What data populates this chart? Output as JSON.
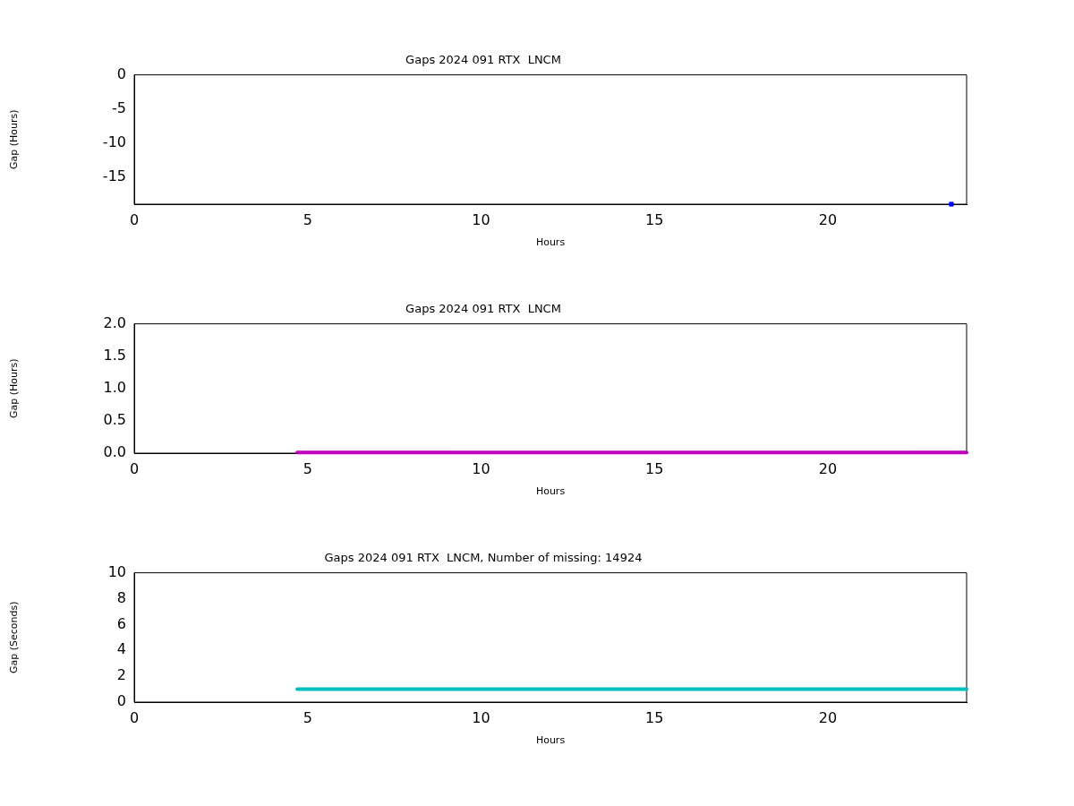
{
  "chart_data": [
    {
      "type": "scatter",
      "title": "Gaps 2024 091 RTX  LNCM",
      "xlabel": "Hours",
      "ylabel": "Gap (Hours)",
      "series": [
        {
          "color": "#0000ff",
          "x": [
            23.56
          ],
          "values": [
            -18.9
          ]
        }
      ],
      "xlim": [
        0,
        24
      ],
      "xticks": [
        0,
        5,
        10,
        15,
        20
      ],
      "ylim": [
        -18.9,
        0
      ],
      "yticks": [
        -15,
        -10,
        -5,
        0
      ]
    },
    {
      "type": "line",
      "title": "Gaps 2024 091 RTX  LNCM",
      "xlabel": "Hours",
      "ylabel": "Gap (Hours)",
      "series": [
        {
          "color": "#bf00bf",
          "x": [
            4.7,
            24
          ],
          "values": [
            0.01,
            0.01
          ]
        }
      ],
      "xlim": [
        0,
        24
      ],
      "xticks": [
        0,
        5,
        10,
        15,
        20
      ],
      "ylim": [
        0,
        2
      ],
      "yticks": [
        {
          "value": 0,
          "label": "0.0"
        },
        {
          "value": 0.5,
          "label": "0.5"
        },
        {
          "value": 1,
          "label": "1.0"
        },
        {
          "value": 1.5,
          "label": "1.5"
        },
        {
          "value": 2,
          "label": "2.0"
        }
      ]
    },
    {
      "type": "line",
      "title": "Gaps 2024 091 RTX  LNCM, Number of missing: 14924",
      "xlabel": "Hours",
      "ylabel": "Gap (Seconds)",
      "series": [
        {
          "color": "#00bfbf",
          "x": [
            4.7,
            24
          ],
          "values": [
            1,
            1
          ]
        }
      ],
      "xlim": [
        0,
        24
      ],
      "xticks": [
        0,
        5,
        10,
        15,
        20
      ],
      "ylim": [
        0,
        10
      ],
      "yticks": [
        0,
        2,
        4,
        6,
        8,
        10
      ]
    }
  ]
}
